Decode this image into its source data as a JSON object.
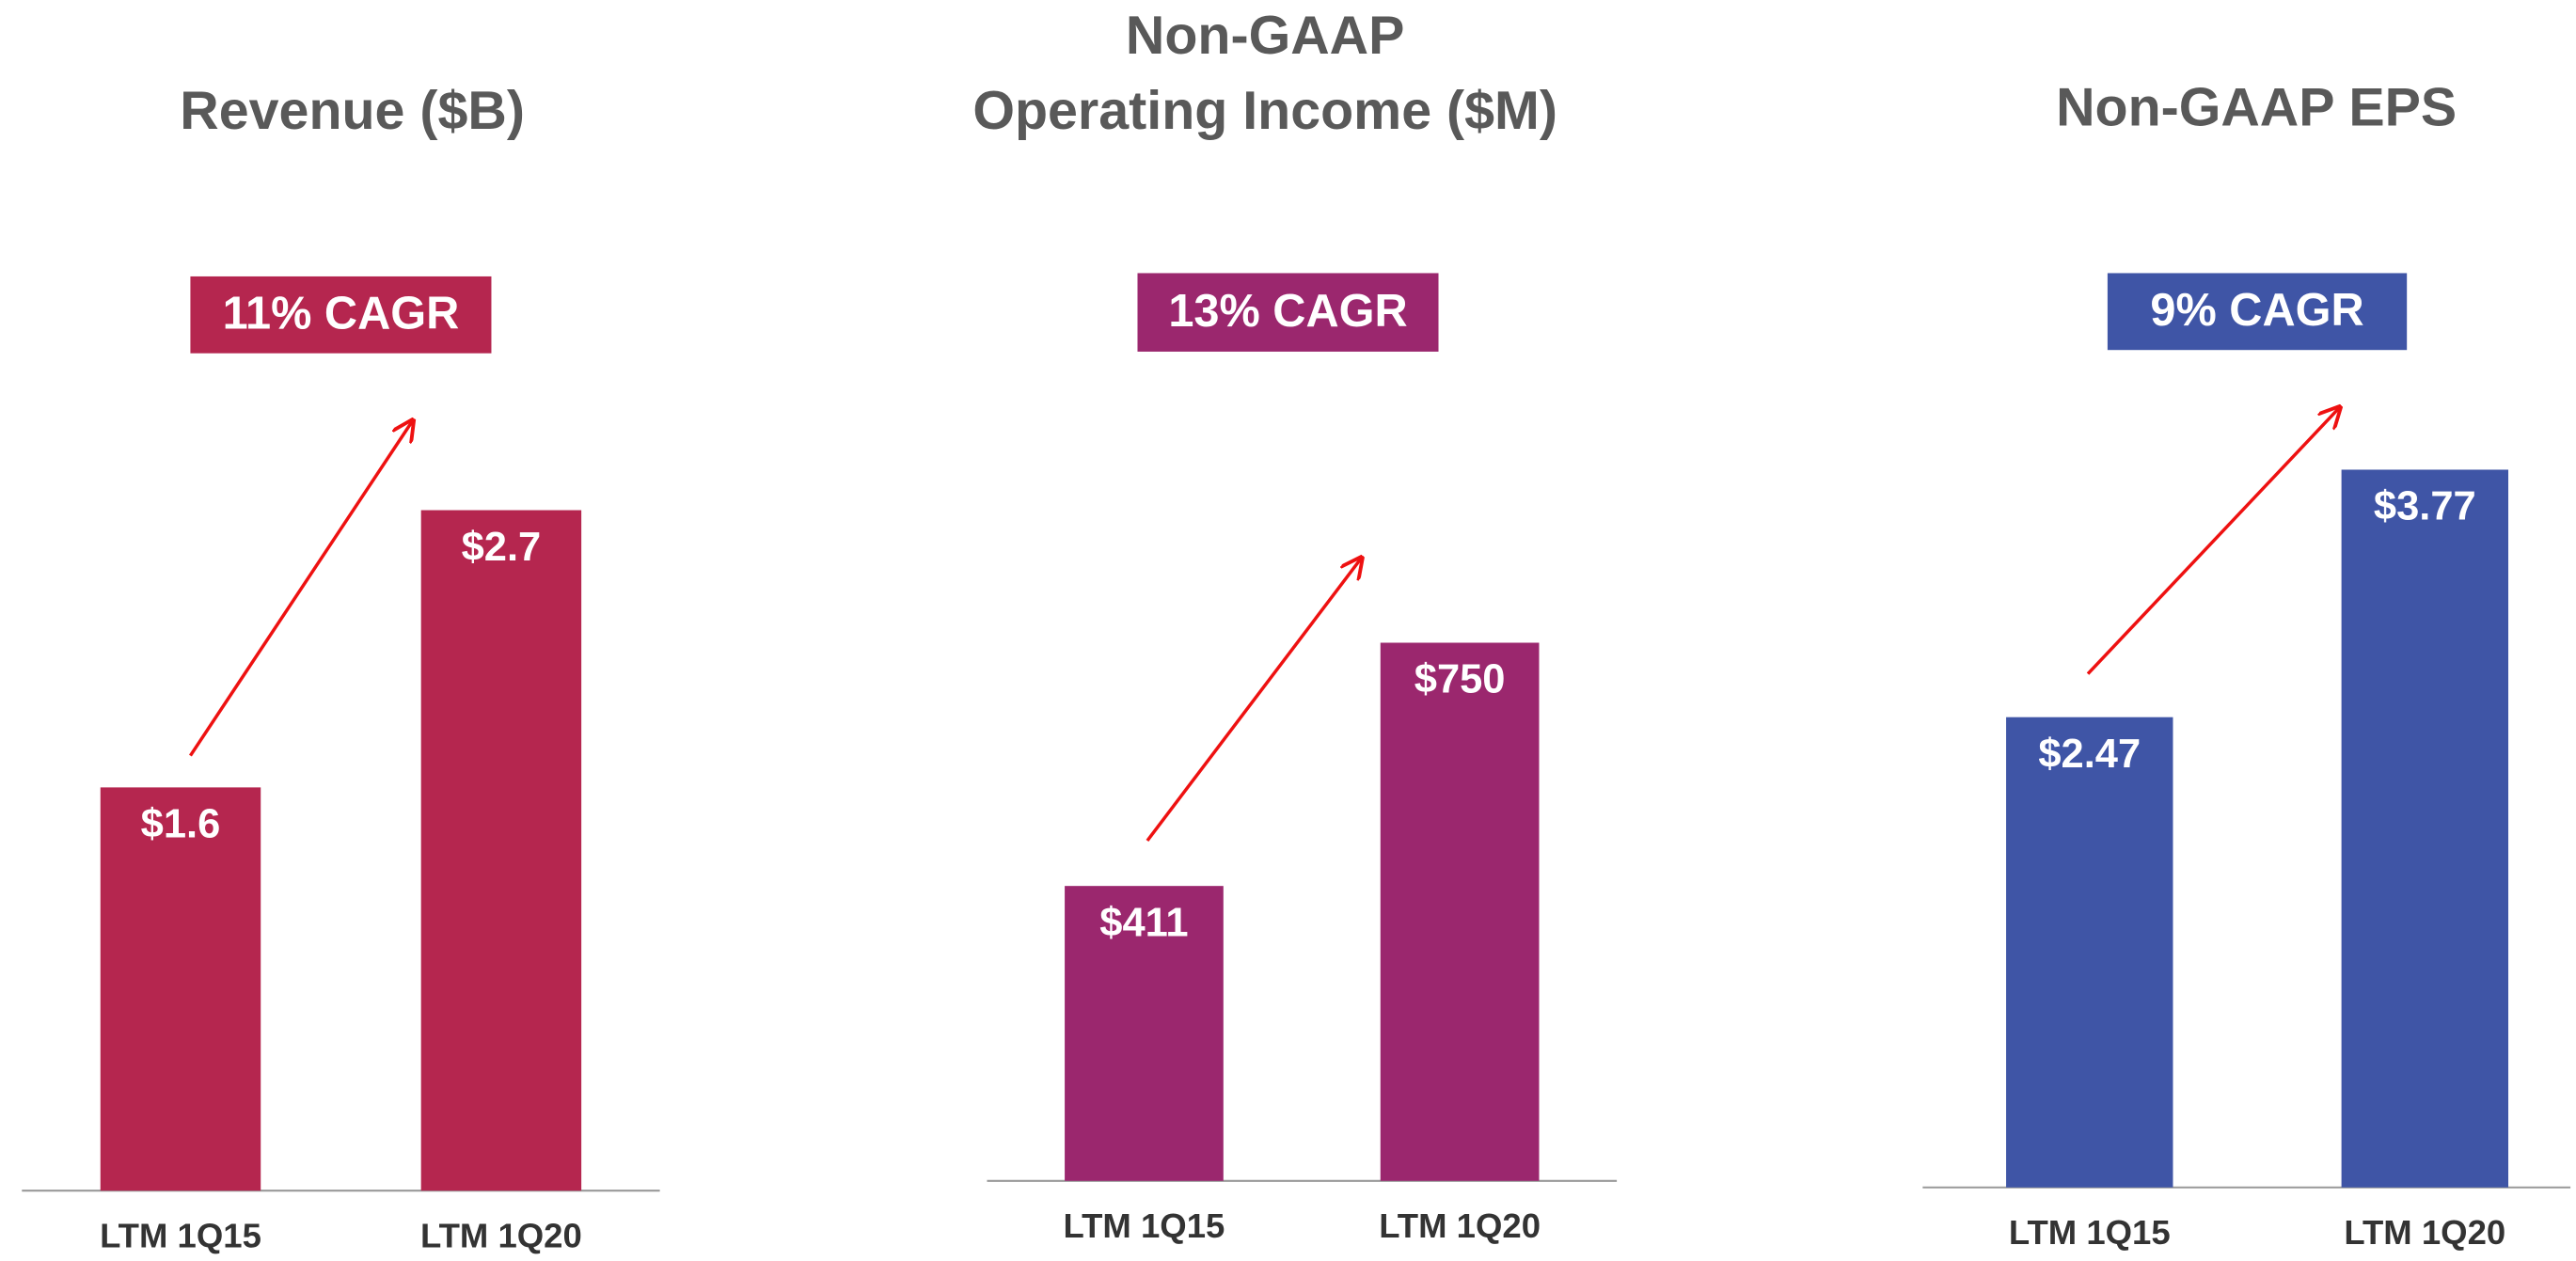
{
  "chart_data": [
    {
      "type": "bar",
      "title": [
        "Revenue ($B)"
      ],
      "annotation": "11% CAGR",
      "color": "#b5264f",
      "categories": [
        "LTM 1Q15",
        "LTM 1Q20"
      ],
      "values": [
        1.6,
        2.7
      ],
      "value_labels": [
        "$1.6",
        "$2.7"
      ]
    },
    {
      "type": "bar",
      "title": [
        "Non-GAAP",
        "Operating Income ($M)"
      ],
      "annotation": "13% CAGR",
      "color": "#9b276e",
      "categories": [
        "LTM 1Q15",
        "LTM 1Q20"
      ],
      "values": [
        411,
        750
      ],
      "value_labels": [
        "$411",
        "$750"
      ]
    },
    {
      "type": "bar",
      "title": [
        "Non-GAAP EPS"
      ],
      "annotation": "9% CAGR",
      "color": "#3f55a6",
      "categories": [
        "LTM 1Q15",
        "LTM 1Q20"
      ],
      "values": [
        2.47,
        3.77
      ],
      "value_labels": [
        "$2.47",
        "$3.77"
      ]
    }
  ]
}
